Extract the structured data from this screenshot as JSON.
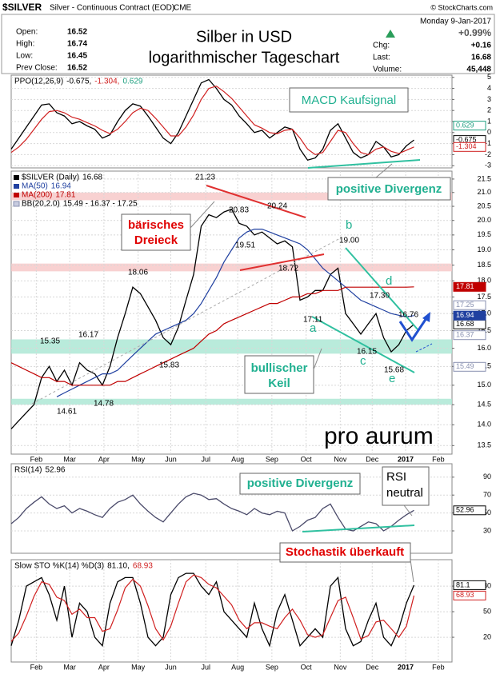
{
  "header": {
    "symbol": "$SILVER",
    "description": "Silver - Continuous Contract (EOD)",
    "exchange": "CME",
    "credit": "© StockCharts.com",
    "date": "Monday  9-Jan-2017",
    "change_pct": "+0.99%",
    "title": [
      "Silber in USD",
      "logarithmischer Tageschart"
    ],
    "quote": [
      {
        "label": "Open:",
        "value": 16.52
      },
      {
        "label": "High:",
        "value": 16.74
      },
      {
        "label": "Low:",
        "value": 16.45
      },
      {
        "label": "Prev Close:",
        "value": 16.52
      }
    ],
    "stats": [
      {
        "label": "Chg:",
        "value": "+0.16"
      },
      {
        "label": "Last:",
        "value": 16.68
      },
      {
        "label": "Volume:",
        "value": "45,448"
      }
    ]
  },
  "chart_data": [
    {
      "type": "line",
      "label": "PPO(12,26,9)",
      "xlim": [
        0,
        58
      ],
      "ylim": [
        -3.2,
        5.2
      ],
      "yticks": [
        5,
        4,
        3,
        2,
        1,
        0,
        -1,
        -2,
        -3
      ],
      "grid": true,
      "readings": [
        {
          "value": -0.675,
          "label": "-0.675,",
          "color": "#000000"
        },
        {
          "value": -1.304,
          "label": "-1.304,",
          "color": "#d02020"
        },
        {
          "value": 0.629,
          "label": "0.629",
          "color": "#20a080"
        }
      ],
      "series": [
        {
          "color": "#000000",
          "values": [
            -1.5,
            -0.5,
            0.5,
            1.5,
            2.5,
            2.6,
            1.8,
            1.5,
            0.8,
            1.0,
            0.6,
            0.3,
            -0.5,
            -0.2,
            1.0,
            2.0,
            2.6,
            2.4,
            1.5,
            0.5,
            -0.5,
            -1.0,
            0.0,
            1.5,
            3.0,
            4.5,
            4.8,
            4.0,
            3.0,
            2.5,
            1.5,
            0.8,
            0.0,
            0.2,
            -0.5,
            0.0,
            0.5,
            0.3,
            -1.5,
            -2.5,
            -2.3,
            -1.5,
            0.2,
            0.8,
            -0.5,
            -1.8,
            -2.3,
            -2.0,
            -0.8,
            -1.3,
            -2.2,
            -2.0,
            -1.2,
            -0.675
          ]
        },
        {
          "color": "#d02020",
          "values": [
            -1.8,
            -1.3,
            -0.6,
            0.3,
            1.2,
            1.9,
            2.0,
            1.8,
            1.4,
            1.2,
            0.9,
            0.6,
            0.2,
            -0.1,
            0.3,
            1.0,
            1.8,
            2.2,
            2.0,
            1.3,
            0.5,
            -0.3,
            -0.3,
            0.5,
            1.6,
            3.0,
            4.0,
            4.2,
            3.7,
            3.1,
            2.3,
            1.5,
            0.7,
            0.4,
            0.0,
            -0.1,
            0.2,
            0.3,
            -0.5,
            -1.5,
            -2.0,
            -1.8,
            -0.8,
            0.2,
            0.0,
            -1.0,
            -1.8,
            -2.0,
            -1.5,
            -1.3,
            -1.7,
            -1.9,
            -1.6,
            -1.304
          ]
        }
      ],
      "annotations": [
        "MACD Kaufsignal",
        "positive Divergenz"
      ]
    },
    {
      "type": "line",
      "log_scale": true,
      "xlim": [
        0,
        58
      ],
      "ylim": [
        13.3,
        21.8
      ],
      "grid": true,
      "yticks": [
        {
          "value": 13.5,
          "label": "13.5"
        },
        {
          "value": 14,
          "label": "14.0"
        },
        14.5,
        {
          "value": 15,
          "label": "15.0"
        },
        15.5,
        {
          "value": 16,
          "label": "16.0"
        },
        16.5,
        {
          "value": 17,
          "label": "17.0"
        },
        17.5,
        {
          "value": 18,
          "label": "18.0"
        },
        18.5,
        {
          "value": 19,
          "label": "19.0"
        },
        19.5,
        {
          "value": 20,
          "label": "20.0"
        },
        20.5,
        {
          "value": 21,
          "label": "21.0"
        },
        21.5
      ],
      "xticks": [
        {
          "value": 3.3,
          "label": "Feb"
        },
        {
          "value": 7.7,
          "label": "Mar"
        },
        {
          "value": 12.2,
          "label": "Apr"
        },
        {
          "value": 16.7,
          "label": "May"
        },
        {
          "value": 21,
          "label": "Jun"
        },
        {
          "value": 25.6,
          "label": "Jul"
        },
        {
          "value": 29.8,
          "label": "Aug"
        },
        {
          "value": 34.3,
          "label": "Sep"
        },
        {
          "value": 38.8,
          "label": "Oct"
        },
        {
          "value": 43.3,
          "label": "Nov"
        },
        {
          "value": 47.5,
          "label": "Dec"
        },
        {
          "value": 51.9,
          "label": "2017"
        },
        {
          "value": 56.2,
          "label": "Feb"
        }
      ],
      "zones": [
        {
          "range": [
            20.72,
            21.0
          ],
          "color": "#f6c6c6"
        },
        {
          "range": [
            18.3,
            18.55
          ],
          "color": "#f6c6c6"
        },
        {
          "range": [
            15.85,
            16.25
          ],
          "color": "#a8e6d2"
        },
        {
          "range": [
            14.5,
            14.65
          ],
          "color": "#a8e6d2"
        }
      ],
      "series": [
        {
          "name": "$SILVER (Daily)",
          "last": 16.68,
          "color": "#000000",
          "values": [
            13.9,
            14.1,
            14.3,
            14.5,
            15.2,
            15.5,
            15.1,
            15.4,
            15.0,
            15.6,
            15.4,
            15.3,
            15.0,
            15.5,
            16.3,
            17.0,
            17.8,
            17.6,
            17.2,
            16.8,
            16.3,
            16.1,
            16.6,
            17.4,
            18.2,
            19.8,
            20.2,
            20.1,
            20.3,
            20.4,
            19.9,
            19.8,
            19.5,
            19.6,
            19.4,
            19.2,
            19.3,
            19.1,
            17.4,
            17.5,
            17.7,
            17.7,
            18.2,
            18.4,
            17.0,
            16.7,
            16.4,
            16.7,
            17.0,
            16.3,
            15.9,
            16.1,
            16.5,
            16.68
          ]
        },
        {
          "name": "MA(50)",
          "last": 16.94,
          "color": "#2040a0",
          "values": [
            null,
            null,
            null,
            null,
            null,
            null,
            14.7,
            14.8,
            14.9,
            15.0,
            15.1,
            15.2,
            15.3,
            15.3,
            15.4,
            15.6,
            15.8,
            16.0,
            16.2,
            16.4,
            16.5,
            16.6,
            16.7,
            16.8,
            17.0,
            17.3,
            17.7,
            18.1,
            18.6,
            19.0,
            19.4,
            19.6,
            19.7,
            19.7,
            19.6,
            19.5,
            19.4,
            19.3,
            19.2,
            19.0,
            18.7,
            18.4,
            18.2,
            18.0,
            17.8,
            17.6,
            17.4,
            17.3,
            17.2,
            17.1,
            17.0,
            16.95,
            16.9,
            16.94
          ]
        },
        {
          "name": "MA(200)",
          "last": 17.81,
          "color": "#c00000",
          "values": [
            15.6,
            15.5,
            15.4,
            15.3,
            15.2,
            15.2,
            15.1,
            15.1,
            15.0,
            15.0,
            15.0,
            15.0,
            15.0,
            15.0,
            15.1,
            15.1,
            15.2,
            15.3,
            15.4,
            15.5,
            15.6,
            15.7,
            15.8,
            15.9,
            16.0,
            16.2,
            16.4,
            16.5,
            16.7,
            16.8,
            16.9,
            17.0,
            17.1,
            17.2,
            17.3,
            17.3,
            17.4,
            17.5,
            17.5,
            17.6,
            17.6,
            17.7,
            17.7,
            17.7,
            17.8,
            17.8,
            17.8,
            17.8,
            17.8,
            17.8,
            17.8,
            17.8,
            17.8,
            17.81
          ]
        }
      ],
      "bb": {
        "name": "BB(20,2.0)",
        "last_label": "15.49 - 16.37 - 17.25",
        "bands": [
          15.49,
          16.37,
          17.25
        ],
        "color": "#8890b0"
      },
      "annotations": [
        "bärisches",
        "Dreieck",
        "bullischer",
        "Keil",
        "pro aurum",
        "a",
        "b",
        "c",
        "d",
        "e"
      ],
      "price_labels": [
        21.23,
        20.83,
        20.24,
        19.51,
        18.72,
        {
          "value": 19,
          "label": "19.00"
        },
        18.06,
        {
          "value": 17.3,
          "label": "17.30"
        },
        16.76,
        17.11,
        16.15,
        15.68,
        16.17,
        15.35,
        15.83,
        14.61,
        14.78
      ]
    },
    {
      "type": "line",
      "label": "RSI(14)",
      "xlim": [
        0,
        58
      ],
      "ylim": [
        5,
        105
      ],
      "yticks": [
        90,
        70,
        50,
        30
      ],
      "grid": true,
      "readings": [
        {
          "value": 52.96,
          "color": "#000000"
        }
      ],
      "series": [
        {
          "color": "#4a4a6a",
          "values": [
            38,
            45,
            55,
            62,
            68,
            60,
            55,
            58,
            50,
            55,
            52,
            48,
            45,
            55,
            62,
            65,
            70,
            60,
            52,
            45,
            40,
            50,
            60,
            68,
            72,
            70,
            65,
            66,
            60,
            55,
            52,
            48,
            55,
            50,
            48,
            52,
            50,
            30,
            35,
            42,
            45,
            55,
            60,
            45,
            32,
            30,
            35,
            40,
            38,
            30,
            35,
            42,
            48,
            52.96
          ]
        }
      ],
      "annotations": [
        "positive Divergenz",
        "RSI",
        "neutral"
      ]
    },
    {
      "type": "line",
      "label": "Slow STO %K(14) %D(3)",
      "xlim": [
        0,
        58
      ],
      "ylim": [
        -9,
        111
      ],
      "yticks": [
        80,
        50,
        20
      ],
      "grid": true,
      "xticks": [
        {
          "value": 3.3,
          "label": "Feb"
        },
        {
          "value": 7.7,
          "label": "Mar"
        },
        {
          "value": 12.2,
          "label": "Apr"
        },
        {
          "value": 16.7,
          "label": "May"
        },
        {
          "value": 21,
          "label": "Jun"
        },
        {
          "value": 25.6,
          "label": "Jul"
        },
        {
          "value": 29.8,
          "label": "Aug"
        },
        {
          "value": 34.3,
          "label": "Sep"
        },
        {
          "value": 38.8,
          "label": "Oct"
        },
        {
          "value": 43.3,
          "label": "Nov"
        },
        {
          "value": 47.5,
          "label": "Dec"
        },
        {
          "value": 51.9,
          "label": "2017"
        },
        {
          "value": 56.2,
          "label": "Feb"
        }
      ],
      "readings": [
        {
          "value": 81.1,
          "label": "81.10,",
          "color": "#000000"
        },
        {
          "value": 68.93,
          "color": "#d02020"
        }
      ],
      "series": [
        {
          "color": "#000000",
          "values": [
            10,
            40,
            80,
            85,
            90,
            70,
            40,
            80,
            20,
            60,
            50,
            20,
            10,
            60,
            85,
            90,
            90,
            60,
            20,
            10,
            20,
            70,
            90,
            95,
            95,
            80,
            70,
            85,
            50,
            40,
            30,
            20,
            60,
            30,
            10,
            50,
            70,
            40,
            10,
            20,
            30,
            20,
            80,
            90,
            30,
            10,
            15,
            40,
            60,
            20,
            10,
            30,
            60,
            81.1
          ]
        },
        {
          "color": "#d02020",
          "values": [
            15,
            25,
            45,
            68,
            85,
            82,
            67,
            63,
            47,
            53,
            43,
            43,
            27,
            30,
            52,
            78,
            88,
            80,
            57,
            30,
            17,
            33,
            60,
            85,
            93,
            90,
            82,
            78,
            68,
            58,
            40,
            30,
            37,
            37,
            33,
            30,
            43,
            53,
            40,
            23,
            20,
            23,
            43,
            63,
            67,
            43,
            18,
            22,
            38,
            40,
            30,
            20,
            33,
            68.93
          ]
        }
      ],
      "annotations": [
        "Stochastik überkauft"
      ]
    }
  ]
}
